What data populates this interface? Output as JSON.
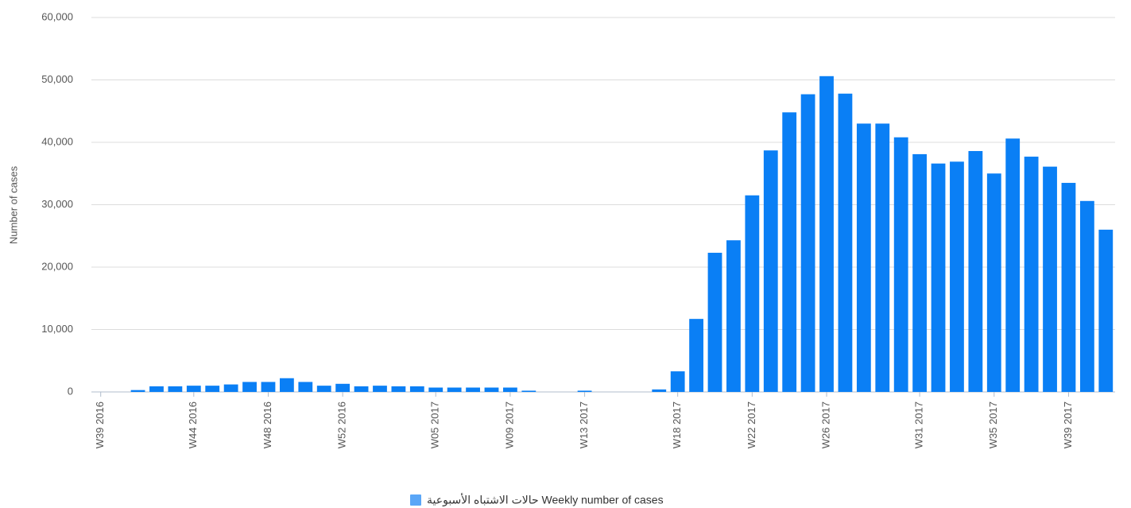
{
  "chart_data": {
    "type": "bar",
    "y_label": "Number of cases",
    "categories": [
      "W39 2016",
      null,
      null,
      null,
      null,
      "W44 2016",
      null,
      null,
      null,
      "W48 2016",
      null,
      null,
      null,
      "W52 2016",
      null,
      null,
      null,
      null,
      "W05 2017",
      null,
      null,
      null,
      "W09 2017",
      null,
      null,
      null,
      "W13 2017",
      null,
      null,
      null,
      null,
      "W18 2017",
      null,
      null,
      null,
      "W22 2017",
      null,
      null,
      null,
      "W26 2017",
      null,
      null,
      null,
      null,
      "W31 2017",
      null,
      null,
      null,
      "W35 2017",
      null,
      null,
      null,
      "W39 2017",
      null,
      null
    ],
    "series": [
      {
        "name": "حالات الاشتباه الأسبوعية Weekly number of cases",
        "color": "#0a7ff5",
        "values": [
          0,
          0,
          300,
          900,
          900,
          1000,
          1000,
          1200,
          1600,
          1600,
          2200,
          1600,
          1000,
          1300,
          900,
          1000,
          900,
          900,
          700,
          700,
          700,
          700,
          700,
          200,
          0,
          0,
          200,
          0,
          0,
          0,
          400,
          3300,
          11700,
          22300,
          24300,
          31500,
          38700,
          44800,
          47700,
          50600,
          47800,
          43000,
          43000,
          40800,
          38100,
          36600,
          36900,
          38600,
          35000,
          40600,
          37700,
          36100,
          33500,
          30600,
          26000
        ]
      }
    ],
    "legend_color": "#5aa6f7",
    "ylim": [
      0,
      60000
    ],
    "yticks": [
      {
        "value": 0,
        "label": "0"
      },
      {
        "value": 10000,
        "label": "10,000"
      },
      {
        "value": 20000,
        "label": "20,000"
      },
      {
        "value": 30000,
        "label": "30,000"
      },
      {
        "value": 40000,
        "label": "40,000"
      },
      {
        "value": 50000,
        "label": "50,000"
      },
      {
        "value": 60000,
        "label": "60,000"
      }
    ],
    "grid": true
  }
}
